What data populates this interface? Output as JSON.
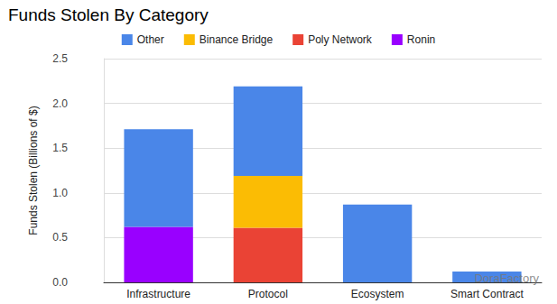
{
  "chart_data": {
    "type": "bar",
    "title": "Funds Stolen By Category",
    "y_label": "Funds Stolen (Billions of $)",
    "categories": [
      "Infrastructure",
      "Protocol",
      "Ecosystem",
      "Smart Contract"
    ],
    "series": [
      {
        "name": "Other",
        "color": "#4a86e8",
        "values": [
          1.09,
          1.0,
          0.87,
          0.12
        ]
      },
      {
        "name": "Binance Bridge",
        "color": "#fbbc04",
        "values": [
          null,
          0.58,
          null,
          null
        ]
      },
      {
        "name": "Poly Network",
        "color": "#ea4335",
        "values": [
          null,
          0.61,
          null,
          null
        ]
      },
      {
        "name": "Ronin",
        "color": "#9900ff",
        "values": [
          0.62,
          null,
          null,
          null
        ]
      }
    ],
    "stacked": true,
    "ylim": [
      0,
      2.5
    ],
    "yticks": [
      {
        "value": 0,
        "label": "0.0"
      },
      0.5,
      {
        "value": 1,
        "label": "1.0"
      },
      1.5,
      {
        "value": 2,
        "label": "2.0"
      },
      2.5
    ],
    "grid": true,
    "legend": "top",
    "annotations": [
      "DoraFactory"
    ]
  }
}
